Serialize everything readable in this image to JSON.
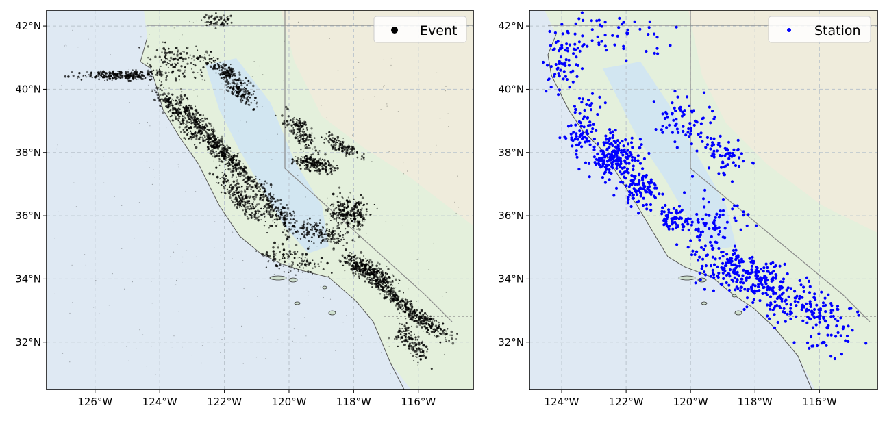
{
  "panels": [
    {
      "id": "events",
      "legend_label": "Event",
      "marker_color": "#000000",
      "x_ticks": [
        "126°W",
        "124°W",
        "122°W",
        "120°W",
        "118°W",
        "116°W"
      ],
      "y_ticks": [
        "32°N",
        "34°N",
        "36°N",
        "38°N",
        "40°N",
        "42°N"
      ],
      "lon_range": [
        -127.5,
        -114.3
      ],
      "lat_range": [
        30.5,
        42.5
      ]
    },
    {
      "id": "stations",
      "legend_label": "Station",
      "marker_color": "#0000ff",
      "x_ticks": [
        "124°W",
        "122°W",
        "120°W",
        "118°W",
        "116°W"
      ],
      "y_ticks": [
        "32°N",
        "34°N",
        "36°N",
        "38°N",
        "40°N",
        "42°N"
      ],
      "lon_range": [
        -125.0,
        -114.2
      ],
      "lat_range": [
        30.5,
        42.5
      ]
    }
  ],
  "colors": {
    "ocean": "#dfe9f3",
    "land": "#e4f0dc",
    "valley": "#cfe4f4",
    "mountains": "#f1ebdc",
    "grid": "#b9c3cc",
    "border": "#444444"
  }
}
